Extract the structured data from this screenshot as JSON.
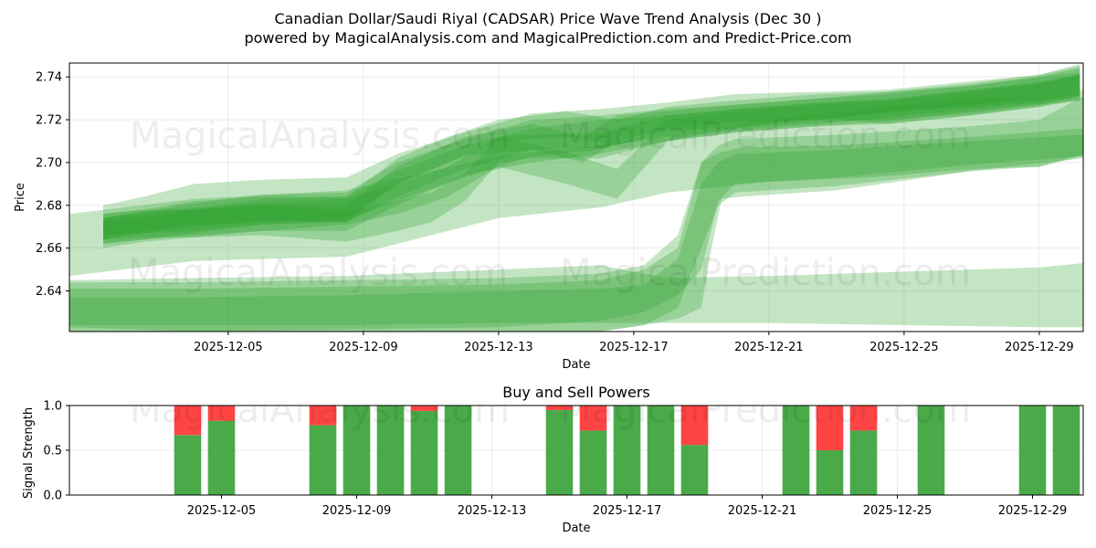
{
  "title_line1": "Canadian Dollar/Saudi Riyal (CADSAR) Price Wave Trend Analysis (Dec 30 )",
  "title_line2": "powered by MagicalAnalysis.com and MagicalPrediction.com and Predict-Price.com",
  "watermarks": [
    "MagicalAnalysis.com",
    "MagicalPrediction.com"
  ],
  "chart_data": [
    {
      "type": "area",
      "title": "",
      "xlabel": "Date",
      "ylabel": "Price",
      "xlim": [
        -0.7,
        29.3
      ],
      "ylim": [
        2.621,
        2.7465
      ],
      "yticks": [
        2.64,
        2.66,
        2.68,
        2.7,
        2.72,
        2.74
      ],
      "ytick_labels": [
        "2.64",
        "2.66",
        "2.68",
        "2.70",
        "2.72",
        "2.74"
      ],
      "xticks": [
        4,
        8,
        12,
        16,
        20,
        24,
        28
      ],
      "xtick_labels": [
        "2025-12-05",
        "2025-12-09",
        "2025-12-13",
        "2025-12-17",
        "2025-12-21",
        "2025-12-25",
        "2025-12-29"
      ],
      "grid": true,
      "color": "#2ca02c",
      "series": [
        {
          "name": "band-1",
          "x": [
            0.3,
            1.5,
            3,
            5,
            7.5,
            9,
            11,
            13,
            15,
            17,
            19,
            21.5,
            23.5,
            26,
            28,
            29.2
          ],
          "lower": [
            2.662,
            2.664,
            2.667,
            2.671,
            2.672,
            2.684,
            2.697,
            2.706,
            2.707,
            2.712,
            2.715,
            2.718,
            2.721,
            2.725,
            2.728,
            2.731
          ],
          "upper": [
            2.672,
            2.674,
            2.678,
            2.683,
            2.684,
            2.696,
            2.708,
            2.716,
            2.72,
            2.722,
            2.725,
            2.728,
            2.729,
            2.734,
            2.737,
            2.741
          ]
        },
        {
          "name": "band-2",
          "x": [
            0.3,
            1.5,
            3,
            5,
            7.5,
            9,
            11,
            13,
            15,
            17,
            19,
            21.5,
            23.5,
            26,
            28,
            29.2
          ],
          "lower": [
            2.66,
            2.663,
            2.665,
            2.668,
            2.668,
            2.68,
            2.694,
            2.7,
            2.704,
            2.71,
            2.714,
            2.717,
            2.719,
            2.724,
            2.727,
            2.729
          ],
          "upper": [
            2.674,
            2.677,
            2.681,
            2.685,
            2.686,
            2.7,
            2.711,
            2.72,
            2.722,
            2.725,
            2.727,
            2.73,
            2.732,
            2.736,
            2.74,
            2.744
          ]
        },
        {
          "name": "band-3",
          "x": [
            0.3,
            1.5,
            3,
            5,
            7.5,
            9,
            10.5,
            12,
            14,
            15.5,
            17,
            19,
            21.5,
            23.5,
            26,
            28,
            29.2
          ],
          "lower": [
            2.664,
            2.668,
            2.671,
            2.673,
            2.672,
            2.69,
            2.7,
            2.71,
            2.712,
            2.708,
            2.714,
            2.718,
            2.72,
            2.724,
            2.726,
            2.729,
            2.732
          ],
          "upper": [
            2.676,
            2.678,
            2.682,
            2.684,
            2.684,
            2.702,
            2.712,
            2.72,
            2.724,
            2.72,
            2.726,
            2.729,
            2.732,
            2.733,
            2.737,
            2.741,
            2.745
          ]
        },
        {
          "name": "band-4",
          "x": [
            0.3,
            1.5,
            3,
            5,
            7.5,
            9,
            11,
            13,
            14.5,
            15.5,
            17,
            19,
            21.5,
            23.5,
            26,
            28,
            29.2
          ],
          "lower": [
            2.666,
            2.667,
            2.67,
            2.672,
            2.674,
            2.69,
            2.703,
            2.706,
            2.7,
            2.71,
            2.716,
            2.719,
            2.72,
            2.723,
            2.727,
            2.731,
            2.734
          ],
          "upper": [
            2.674,
            2.676,
            2.678,
            2.68,
            2.68,
            2.698,
            2.712,
            2.718,
            2.712,
            2.722,
            2.724,
            2.727,
            2.73,
            2.733,
            2.736,
            2.74,
            2.742
          ]
        },
        {
          "name": "band-5",
          "x": [
            0.3,
            1.5,
            3,
            5,
            7.5,
            9,
            11,
            13,
            15,
            17,
            19,
            21.5,
            23.5,
            26,
            28,
            29.2
          ],
          "lower": [
            2.664,
            2.667,
            2.668,
            2.671,
            2.673,
            2.682,
            2.693,
            2.703,
            2.706,
            2.715,
            2.716,
            2.721,
            2.718,
            2.722,
            2.726,
            2.73
          ],
          "upper": [
            2.68,
            2.684,
            2.69,
            2.692,
            2.693,
            2.704,
            2.714,
            2.723,
            2.725,
            2.728,
            2.732,
            2.733,
            2.734,
            2.738,
            2.741,
            2.746
          ]
        },
        {
          "name": "band-6",
          "x": [
            0.3,
            1.5,
            3,
            5,
            7.5,
            9,
            10.5,
            12,
            14,
            15.5,
            17,
            19,
            21.5,
            23.5,
            26,
            28,
            29.2
          ],
          "lower": [
            2.662,
            2.664,
            2.666,
            2.668,
            2.671,
            2.676,
            2.684,
            2.698,
            2.69,
            2.683,
            2.71,
            2.716,
            2.719,
            2.72,
            2.723,
            2.727,
            2.731
          ],
          "upper": [
            2.674,
            2.677,
            2.679,
            2.681,
            2.683,
            2.69,
            2.698,
            2.712,
            2.705,
            2.697,
            2.72,
            2.724,
            2.727,
            2.729,
            2.733,
            2.737,
            2.741
          ]
        },
        {
          "name": "band-7",
          "x": [
            0.3,
            1.5,
            3,
            5,
            7.5,
            9,
            10,
            11,
            12,
            13,
            15,
            17,
            19,
            21.5,
            23.5,
            26,
            28,
            29.2
          ],
          "lower": [
            2.664,
            2.665,
            2.665,
            2.666,
            2.663,
            2.668,
            2.672,
            2.682,
            2.7,
            2.702,
            2.702,
            2.71,
            2.714,
            2.717,
            2.718,
            2.722,
            2.726,
            2.729
          ],
          "upper": [
            2.676,
            2.678,
            2.678,
            2.68,
            2.677,
            2.682,
            2.686,
            2.695,
            2.712,
            2.713,
            2.714,
            2.722,
            2.725,
            2.728,
            2.73,
            2.734,
            2.738,
            2.741
          ]
        },
        {
          "name": "band-8",
          "x": [
            -0.7,
            3,
            7.5,
            12,
            15,
            17,
            20,
            23,
            26,
            28,
            29.3
          ],
          "lower": [
            2.647,
            2.654,
            2.656,
            2.674,
            2.679,
            2.686,
            2.691,
            2.693,
            2.697,
            2.698,
            2.703
          ],
          "upper": [
            2.676,
            2.683,
            2.687,
            2.703,
            2.708,
            2.714,
            2.72,
            2.725,
            2.73,
            2.731,
            2.734
          ]
        },
        {
          "name": "band-9",
          "x": [
            -0.7,
            3,
            7.5,
            12,
            15,
            16.3,
            17.3,
            18,
            18.3,
            18.6,
            19.2,
            22,
            26,
            29.3
          ],
          "lower": [
            2.619,
            2.619,
            2.619,
            2.619,
            2.621,
            2.624,
            2.627,
            2.632,
            2.66,
            2.683,
            2.684,
            2.687,
            2.696,
            2.702
          ],
          "upper": [
            2.641,
            2.641,
            2.642,
            2.643,
            2.645,
            2.65,
            2.66,
            2.7,
            2.703,
            2.705,
            2.707,
            2.708,
            2.712,
            2.716
          ]
        },
        {
          "name": "band-10",
          "x": [
            -0.7,
            3,
            7.5,
            12,
            15,
            16.3,
            17.3,
            18,
            18.5,
            19,
            22,
            26,
            29.3
          ],
          "lower": [
            2.623,
            2.621,
            2.622,
            2.623,
            2.626,
            2.63,
            2.638,
            2.65,
            2.682,
            2.69,
            2.693,
            2.699,
            2.703
          ],
          "upper": [
            2.637,
            2.637,
            2.638,
            2.64,
            2.641,
            2.643,
            2.655,
            2.69,
            2.7,
            2.704,
            2.706,
            2.71,
            2.713
          ]
        },
        {
          "name": "band-11",
          "x": [
            -0.7,
            3,
            7.5,
            12,
            15,
            16.3,
            17.3,
            18,
            18.5,
            19,
            22,
            26,
            28,
            29.3
          ],
          "lower": [
            2.62,
            2.619,
            2.619,
            2.62,
            2.621,
            2.624,
            2.632,
            2.66,
            2.68,
            2.686,
            2.689,
            2.696,
            2.698,
            2.704
          ],
          "upper": [
            2.644,
            2.644,
            2.645,
            2.646,
            2.648,
            2.652,
            2.666,
            2.7,
            2.708,
            2.711,
            2.713,
            2.717,
            2.72,
            2.731
          ]
        },
        {
          "name": "band-12",
          "x": [
            -0.7,
            3,
            7.5,
            12,
            15,
            17,
            20,
            24,
            28,
            29.3
          ],
          "lower": [
            2.624,
            2.624,
            2.624,
            2.625,
            2.625,
            2.625,
            2.625,
            2.624,
            2.623,
            2.623
          ],
          "upper": [
            2.645,
            2.646,
            2.647,
            2.65,
            2.652,
            2.646,
            2.647,
            2.649,
            2.651,
            2.653
          ]
        }
      ]
    },
    {
      "type": "bar",
      "title": "Buy and Sell Powers",
      "xlabel": "Date",
      "ylabel": "Signal Strength",
      "xlim": [
        -0.5,
        29.5
      ],
      "ylim": [
        0,
        1
      ],
      "yticks": [
        0,
        0.5,
        1
      ],
      "ytick_labels": [
        "0.0",
        "0.5",
        "1.0"
      ],
      "xticks": [
        4,
        8,
        12,
        16,
        20,
        24,
        28
      ],
      "xtick_labels": [
        "2025-12-05",
        "2025-12-09",
        "2025-12-13",
        "2025-12-17",
        "2025-12-21",
        "2025-12-25",
        "2025-12-29"
      ],
      "grid": true,
      "buy_color": "#4aaa4a",
      "sell_color": "#ff4444",
      "x": [
        3,
        4,
        7,
        8,
        9,
        10,
        11,
        14,
        15,
        16,
        17,
        18,
        21,
        22,
        23,
        25,
        28,
        29
      ],
      "series": [
        {
          "name": "Buy",
          "values": [
            0.67,
            0.83,
            0.78,
            1.0,
            1.0,
            0.94,
            1.0,
            0.95,
            0.72,
            1.0,
            1.0,
            0.56,
            1.0,
            0.5,
            0.72,
            1.0,
            1.0,
            1.0
          ]
        },
        {
          "name": "Sell",
          "values": [
            0.33,
            0.17,
            0.22,
            0.0,
            0.0,
            0.06,
            0.0,
            0.05,
            0.28,
            0.0,
            0.0,
            0.44,
            0.0,
            0.5,
            0.28,
            0.0,
            0.0,
            0.0
          ]
        }
      ]
    }
  ]
}
